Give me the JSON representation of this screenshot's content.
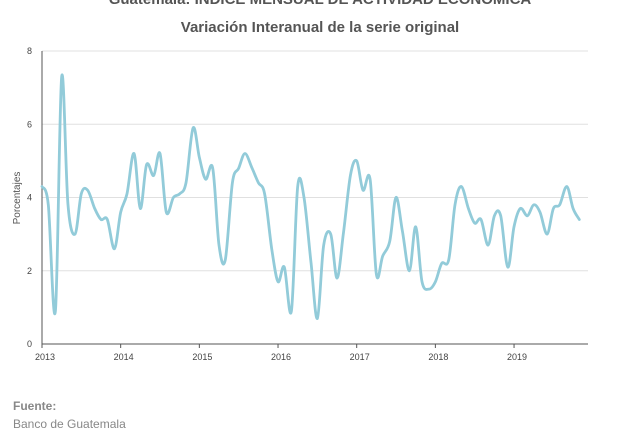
{
  "titles": {
    "line1": "Guatemala: ÍNDICE MENSUAL DE ACTIVIDAD ECONÓMICA",
    "line2": "Variación Interanual de la serie original"
  },
  "source": {
    "label": "Fuente:",
    "value": "Banco de Guatemala"
  },
  "colors": {
    "series": "#92cbd9",
    "grid": "#e0e0e0",
    "axis": "#555555"
  },
  "chart_data": {
    "type": "line",
    "ylabel": "Porcentajes",
    "xlabel": "",
    "ylim": [
      0,
      8
    ],
    "yticks": [
      0,
      2,
      4,
      6,
      8
    ],
    "xlim": [
      2013,
      2019.94
    ],
    "xticks": [
      "2013",
      "2014",
      "2015",
      "2016",
      "2017",
      "2018",
      "2019"
    ],
    "grid": "horizontal",
    "series": [
      {
        "x": [
          2013.0,
          2013.08,
          2013.17,
          2013.25,
          2013.33,
          2013.42,
          2013.5,
          2013.58,
          2013.67,
          2013.75,
          2013.83,
          2013.92,
          2014.0,
          2014.08,
          2014.17,
          2014.25,
          2014.33,
          2014.42,
          2014.5,
          2014.58,
          2014.67,
          2014.75,
          2014.83,
          2014.92,
          2015.0,
          2015.08,
          2015.17,
          2015.25,
          2015.33,
          2015.42,
          2015.5,
          2015.58,
          2015.67,
          2015.75,
          2015.83,
          2015.92,
          2016.0,
          2016.08,
          2016.17,
          2016.25,
          2016.33,
          2016.42,
          2016.5,
          2016.58,
          2016.67,
          2016.75,
          2016.83,
          2016.92,
          2017.0,
          2017.08,
          2017.17,
          2017.25,
          2017.33,
          2017.42,
          2017.5,
          2017.58,
          2017.67,
          2017.75,
          2017.83,
          2017.92,
          2018.0,
          2018.08,
          2018.17,
          2018.25,
          2018.33,
          2018.42,
          2018.5,
          2018.58,
          2018.67,
          2018.75,
          2018.83,
          2018.92,
          2019.0,
          2019.08,
          2019.17,
          2019.25,
          2019.33,
          2019.42,
          2019.5,
          2019.58,
          2019.67,
          2019.75,
          2019.83
        ],
        "y": [
          4.3,
          3.8,
          0.9,
          7.3,
          3.8,
          3.0,
          4.1,
          4.2,
          3.7,
          3.4,
          3.4,
          2.6,
          3.6,
          4.1,
          5.2,
          3.7,
          4.9,
          4.6,
          5.2,
          3.6,
          4.0,
          4.1,
          4.4,
          5.9,
          5.1,
          4.5,
          4.8,
          2.7,
          2.3,
          4.4,
          4.8,
          5.2,
          4.8,
          4.4,
          4.1,
          2.6,
          1.7,
          2.1,
          0.9,
          4.3,
          4.0,
          2.2,
          0.7,
          2.7,
          3.0,
          1.8,
          3.0,
          4.6,
          5.0,
          4.2,
          4.5,
          1.9,
          2.4,
          2.8,
          4.0,
          3.1,
          2.0,
          3.2,
          1.7,
          1.5,
          1.7,
          2.2,
          2.3,
          3.8,
          4.3,
          3.7,
          3.3,
          3.4,
          2.7,
          3.5,
          3.5,
          2.1,
          3.2,
          3.7,
          3.5,
          3.8,
          3.6,
          3.0,
          3.7,
          3.8,
          4.3,
          3.7,
          3.4
        ]
      }
    ]
  }
}
